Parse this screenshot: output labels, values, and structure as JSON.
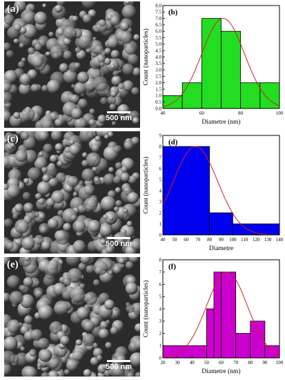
{
  "figure": {
    "panels": [
      {
        "letter": "(a)",
        "scale_label": "500  nm"
      },
      {
        "letter": "(c)",
        "scale_label": "500 nm"
      },
      {
        "letter": "(e)",
        "scale_label": "500 nm"
      }
    ]
  },
  "chart_data": [
    {
      "type": "bar",
      "letter": "(b)",
      "bin_edges": [
        40,
        50,
        60,
        70,
        80,
        90,
        100
      ],
      "values": [
        1,
        2,
        7,
        6,
        2,
        2
      ],
      "xlabel": "Diametre (nm)",
      "ylabel": "Count (nanoparticles)",
      "xlim": [
        40,
        100
      ],
      "ylim": [
        0,
        8
      ],
      "xticks": [
        40,
        60,
        80,
        100
      ],
      "yticks": [
        0.0,
        0.5,
        1.0,
        1.5,
        2.0,
        2.5,
        3.0,
        3.5,
        4.0,
        4.5,
        5.0,
        5.5,
        6.0,
        6.5,
        7.0,
        7.5,
        8.0
      ],
      "fit": {
        "type": "gaussian",
        "peak": 7.0,
        "center": 71,
        "sigma": 11
      },
      "colors": {
        "bar": "#22dd22",
        "fit": "#cc2222"
      }
    },
    {
      "type": "bar",
      "letter": "(d)",
      "bin_edges": [
        40,
        80,
        100,
        140
      ],
      "values": [
        8,
        2,
        1
      ],
      "xlabel": "Diametre",
      "ylabel": "Count (nanoparticles)",
      "xlim": [
        40,
        140
      ],
      "ylim": [
        0,
        9
      ],
      "xticks": [
        40,
        50,
        60,
        70,
        80,
        90,
        100,
        110,
        120,
        130,
        140
      ],
      "yticks": [
        0,
        1,
        2,
        3,
        4,
        5,
        6,
        7,
        8,
        9
      ],
      "fit": {
        "type": "gaussian",
        "peak": 8.0,
        "center": 68,
        "sigma": 19
      },
      "colors": {
        "bar": "#0000ee",
        "fit": "#cc2222"
      }
    },
    {
      "type": "bar",
      "letter": "(f)",
      "bin_edges": [
        20,
        50,
        55,
        60,
        70,
        80,
        90,
        100
      ],
      "values": [
        1,
        4,
        7,
        7,
        2,
        3,
        1
      ],
      "xlabel": "Diametre (nm)",
      "ylabel": "Count (nanoparticles)",
      "xlim": [
        20,
        100
      ],
      "ylim": [
        0,
        8
      ],
      "xticks": [
        20,
        30,
        40,
        50,
        60,
        70,
        80,
        90,
        100
      ],
      "yticks": [
        0,
        1,
        2,
        3,
        4,
        5,
        6,
        7,
        8
      ],
      "fit": {
        "type": "gaussian",
        "peak": 7.0,
        "center": 64,
        "sigma": 14
      },
      "colors": {
        "bar": "#cc00cc",
        "fit": "#cc2222"
      }
    }
  ]
}
